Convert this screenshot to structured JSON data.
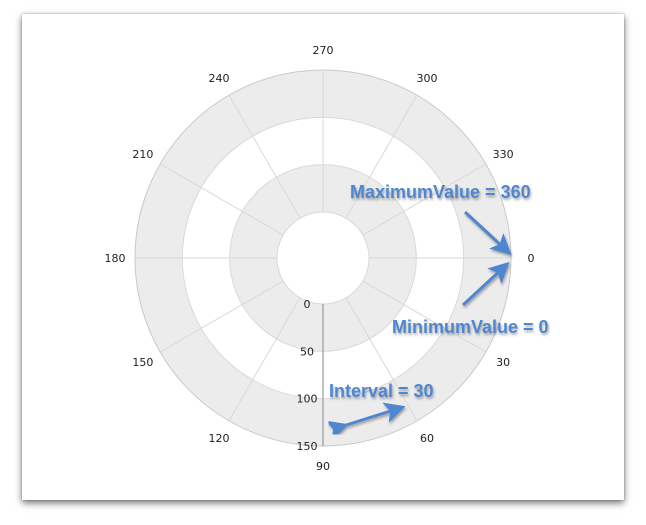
{
  "chart_data": {
    "type": "polar",
    "angular_axis": {
      "min": 0,
      "max": 360,
      "interval": 30,
      "tick_labels": [
        "0",
        "30",
        "60",
        "90",
        "120",
        "150",
        "180",
        "210",
        "240",
        "270",
        "300",
        "330"
      ]
    },
    "radial_axis": {
      "min": 0,
      "max": 150,
      "interval": 50,
      "tick_labels": [
        "0",
        "50",
        "100",
        "150"
      ]
    },
    "grid": true,
    "alternating_bands": true
  },
  "annotations": {
    "max_label": "MaximumValue = 360",
    "min_label": "MinimumValue = 0",
    "interval_label": "Interval = 30"
  },
  "colors": {
    "band": "#ececec",
    "grid": "#d9d9d9",
    "axis": "#9a9a9a",
    "annotation": "#4f86cf"
  }
}
